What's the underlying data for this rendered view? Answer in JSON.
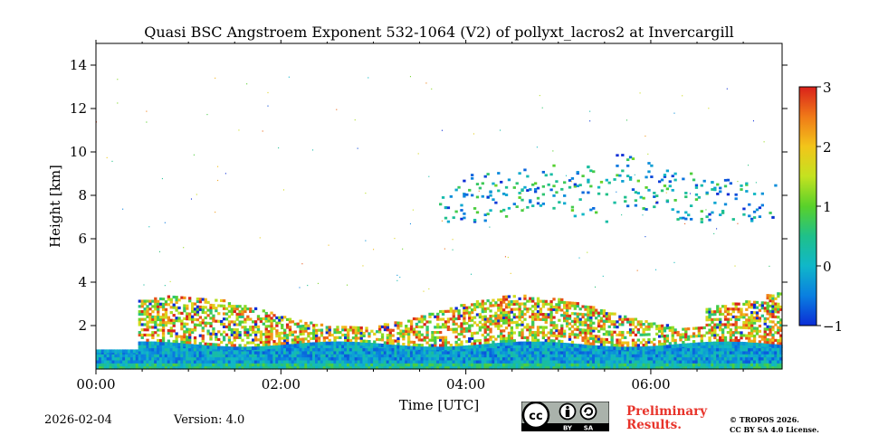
{
  "chart_data": {
    "type": "heatmap",
    "title": "Quasi BSC Angstroem Exponent 532-1064 (V2) of pollyxt_lacros2 at Invercargill",
    "xlabel": "Time [UTC]",
    "ylabel": "Height [km]",
    "xlim_hours": [
      0,
      7.42
    ],
    "ylim_km": [
      0,
      15
    ],
    "x_ticks": [
      {
        "value": 0,
        "label": "00:00"
      },
      {
        "value": 2,
        "label": "02:00"
      },
      {
        "value": 4,
        "label": "04:00"
      },
      {
        "value": 6,
        "label": "06:00"
      }
    ],
    "y_ticks": [
      {
        "value": 2,
        "label": "2"
      },
      {
        "value": 4,
        "label": "4"
      },
      {
        "value": 6,
        "label": "6"
      },
      {
        "value": 8,
        "label": "8"
      },
      {
        "value": 10,
        "label": "10"
      },
      {
        "value": 12,
        "label": "12"
      },
      {
        "value": 14,
        "label": "14"
      }
    ],
    "colorbar": {
      "range": [
        -1,
        3
      ],
      "ticks": [
        {
          "value": 3,
          "label": "3"
        },
        {
          "value": 2,
          "label": "2"
        },
        {
          "value": 1,
          "label": "1"
        },
        {
          "value": 0,
          "label": "0"
        },
        {
          "value": -1,
          "label": "−1"
        }
      ],
      "colormap": "jet"
    },
    "layers": [
      {
        "name": "boundary-layer",
        "start_h": 0.0,
        "end_h": 7.42,
        "bottom_km": 0.0,
        "top_km": 0.9,
        "typical_value": -0.2
      },
      {
        "name": "aerosol-layer",
        "start_h": 0.45,
        "end_h": 7.42,
        "bottom_km": 0.9,
        "top_km": 3.6,
        "typical_value": 1.8
      },
      {
        "name": "cirrus-layer",
        "start_h": 3.7,
        "end_h": 7.42,
        "bottom_km": 6.6,
        "top_km": 10.0,
        "typical_value": 0.0
      }
    ]
  },
  "footer": {
    "date": "2026-02-04",
    "version": "Version: 4.0",
    "preliminary_line1": "Preliminary",
    "preliminary_line2": "Results.",
    "copyright": "© TROPOS 2026.",
    "license": "CC BY SA 4.0 License.",
    "cc_badge": {
      "by": "BY",
      "sa": "SA"
    }
  },
  "colors": {
    "colormap_low": "#0b2cd6",
    "colormap_mid": "#59d12a",
    "colormap_high": "#d9211b",
    "preliminary_text": "#e8332a"
  }
}
